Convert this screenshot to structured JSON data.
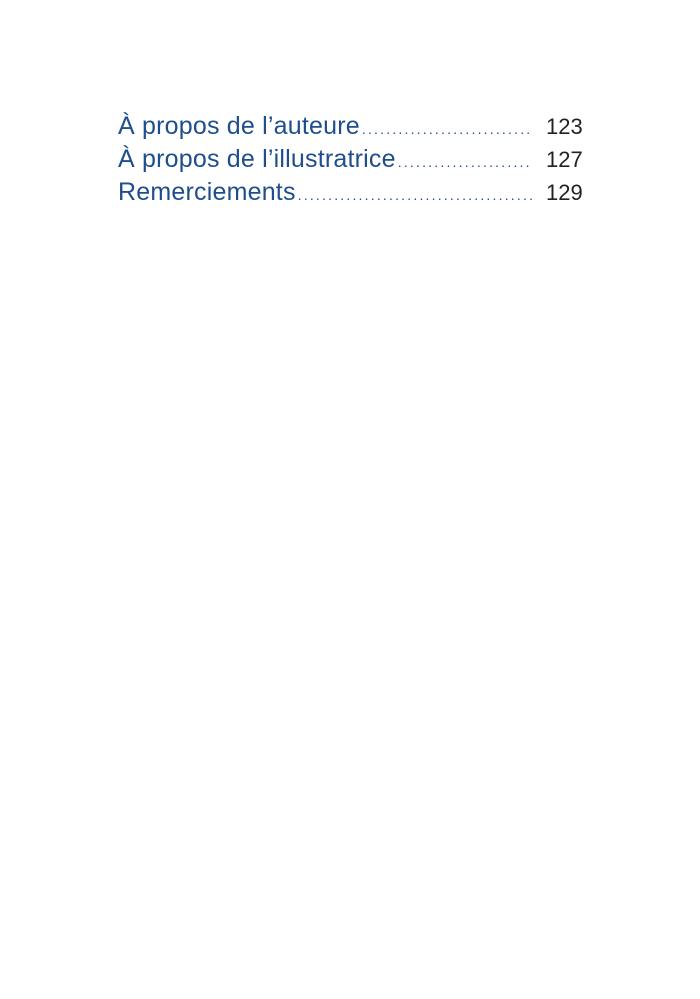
{
  "toc": {
    "entries": [
      {
        "title": "À propos de l’auteure",
        "page": "123"
      },
      {
        "title": "À propos de l’illustratrice",
        "page": "127"
      },
      {
        "title": "Remerciements",
        "page": "129"
      }
    ],
    "colors": {
      "title": "#1f4e8c",
      "page_number": "#222222"
    }
  }
}
